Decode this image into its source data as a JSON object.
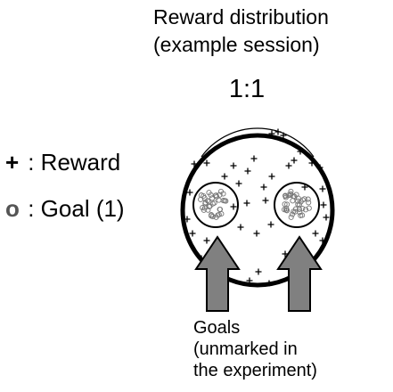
{
  "title_lines": [
    "Reward distribution",
    "(example session)"
  ],
  "ratio": "1:1",
  "legend": {
    "reward": {
      "symbol": "+",
      "label": " : Reward"
    },
    "goal": {
      "symbol": "o",
      "label": " : Goal (1)"
    }
  },
  "caption_lines": [
    "Goals",
    "(unmarked in",
    "the experiment)"
  ],
  "colors": {
    "arrow": "#808080",
    "goal_legend": "#555555"
  }
}
